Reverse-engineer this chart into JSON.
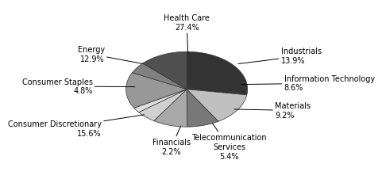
{
  "labels": [
    "Health Care\n27.4%",
    "Industrials\n13.9%",
    "Information Technology\n8.6%",
    "Materials\n9.2%",
    "Telecommunication\nServices\n5.4%",
    "Financials\n2.2%",
    "Consumer Discretionary\n15.6%",
    "Consumer Staples\n4.8%",
    "Energy\n12.9%"
  ],
  "values": [
    27.4,
    13.9,
    8.6,
    9.2,
    5.4,
    2.2,
    15.6,
    4.8,
    12.9
  ],
  "colors": [
    "#333333",
    "#c0c0c0",
    "#787878",
    "#a8a8a8",
    "#d0d0d0",
    "#e0e0e0",
    "#989898",
    "#808080",
    "#505050"
  ],
  "startangle": 90,
  "background_color": "#ffffff",
  "label_fontsize": 7.0
}
